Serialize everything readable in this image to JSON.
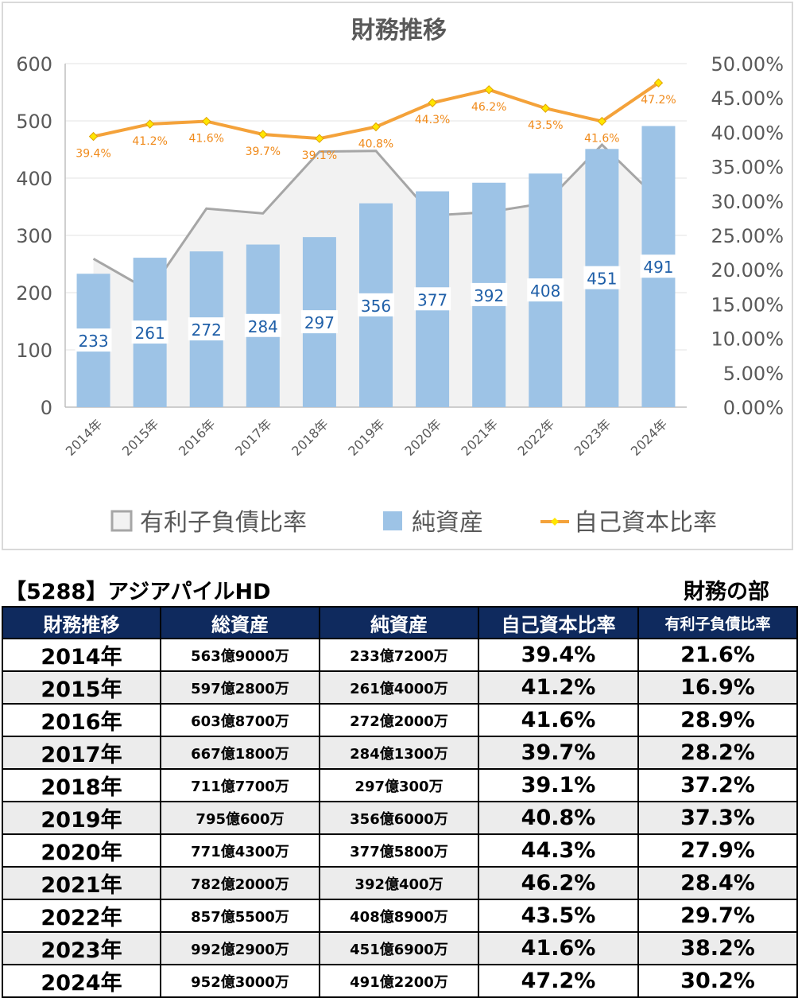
{
  "chart_data": {
    "type": "bar",
    "title": "財務推移",
    "categories": [
      "2014年",
      "2015年",
      "2016年",
      "2017年",
      "2018年",
      "2019年",
      "2020年",
      "2021年",
      "2022年",
      "2023年",
      "2024年"
    ],
    "series": [
      {
        "name": "有利子負債比率",
        "kind": "area",
        "axis": "right",
        "color": "#a6a6a6",
        "fill": "#f2f2f2",
        "values": [
          21.6,
          16.9,
          28.9,
          28.2,
          37.2,
          37.3,
          27.9,
          28.4,
          29.7,
          38.2,
          30.2
        ]
      },
      {
        "name": "純資産",
        "kind": "bar",
        "axis": "left",
        "color": "#9dc3e6",
        "values": [
          233,
          261,
          272,
          284,
          297,
          356,
          377,
          392,
          408,
          451,
          491
        ]
      },
      {
        "name": "自己資本比率",
        "kind": "line",
        "axis": "right",
        "color": "#f4a23a",
        "marker_color": "#ffe600",
        "values": [
          39.4,
          41.2,
          41.6,
          39.7,
          39.1,
          40.8,
          44.3,
          46.2,
          43.5,
          41.6,
          47.2
        ],
        "labels": [
          "39.4%",
          "41.2%",
          "41.6%",
          "39.7%",
          "39.1%",
          "40.8%",
          "44.3%",
          "46.2%",
          "43.5%",
          "41.6%",
          "47.2%"
        ]
      }
    ],
    "y_left": {
      "min": 0,
      "max": 600,
      "ticks": [
        "0",
        "100",
        "200",
        "300",
        "400",
        "500",
        "600"
      ]
    },
    "y_right": {
      "min": 0,
      "max": 50,
      "ticks": [
        "0.00%",
        "5.00%",
        "10.00%",
        "15.00%",
        "20.00%",
        "25.00%",
        "30.00%",
        "35.00%",
        "40.00%",
        "45.00%",
        "50.00%"
      ]
    },
    "grid": true,
    "legend_position": "bottom"
  },
  "company": "【5288】アジアパイルHD",
  "section": "財務の部",
  "table": {
    "headers": [
      "財務推移",
      "総資産",
      "純資産",
      "自己資本比率",
      "有利子負債比率"
    ],
    "rows": [
      [
        "2014年",
        "563億9000万",
        "233億7200万",
        "39.4%",
        "21.6%"
      ],
      [
        "2015年",
        "597億2800万",
        "261億4000万",
        "41.2%",
        "16.9%"
      ],
      [
        "2016年",
        "603億8700万",
        "272億2000万",
        "41.6%",
        "28.9%"
      ],
      [
        "2017年",
        "667億1800万",
        "284億1300万",
        "39.7%",
        "28.2%"
      ],
      [
        "2018年",
        "711億7700万",
        "297億300万",
        "39.1%",
        "37.2%"
      ],
      [
        "2019年",
        "795億600万",
        "356億6000万",
        "40.8%",
        "37.3%"
      ],
      [
        "2020年",
        "771億4300万",
        "377億5800万",
        "44.3%",
        "27.9%"
      ],
      [
        "2021年",
        "782億2000万",
        "392億400万",
        "46.2%",
        "28.4%"
      ],
      [
        "2022年",
        "857億5500万",
        "408億8900万",
        "43.5%",
        "29.7%"
      ],
      [
        "2023年",
        "992億2900万",
        "451億6900万",
        "41.6%",
        "38.2%"
      ],
      [
        "2024年",
        "952億3000万",
        "491億2200万",
        "47.2%",
        "30.2%"
      ]
    ]
  }
}
